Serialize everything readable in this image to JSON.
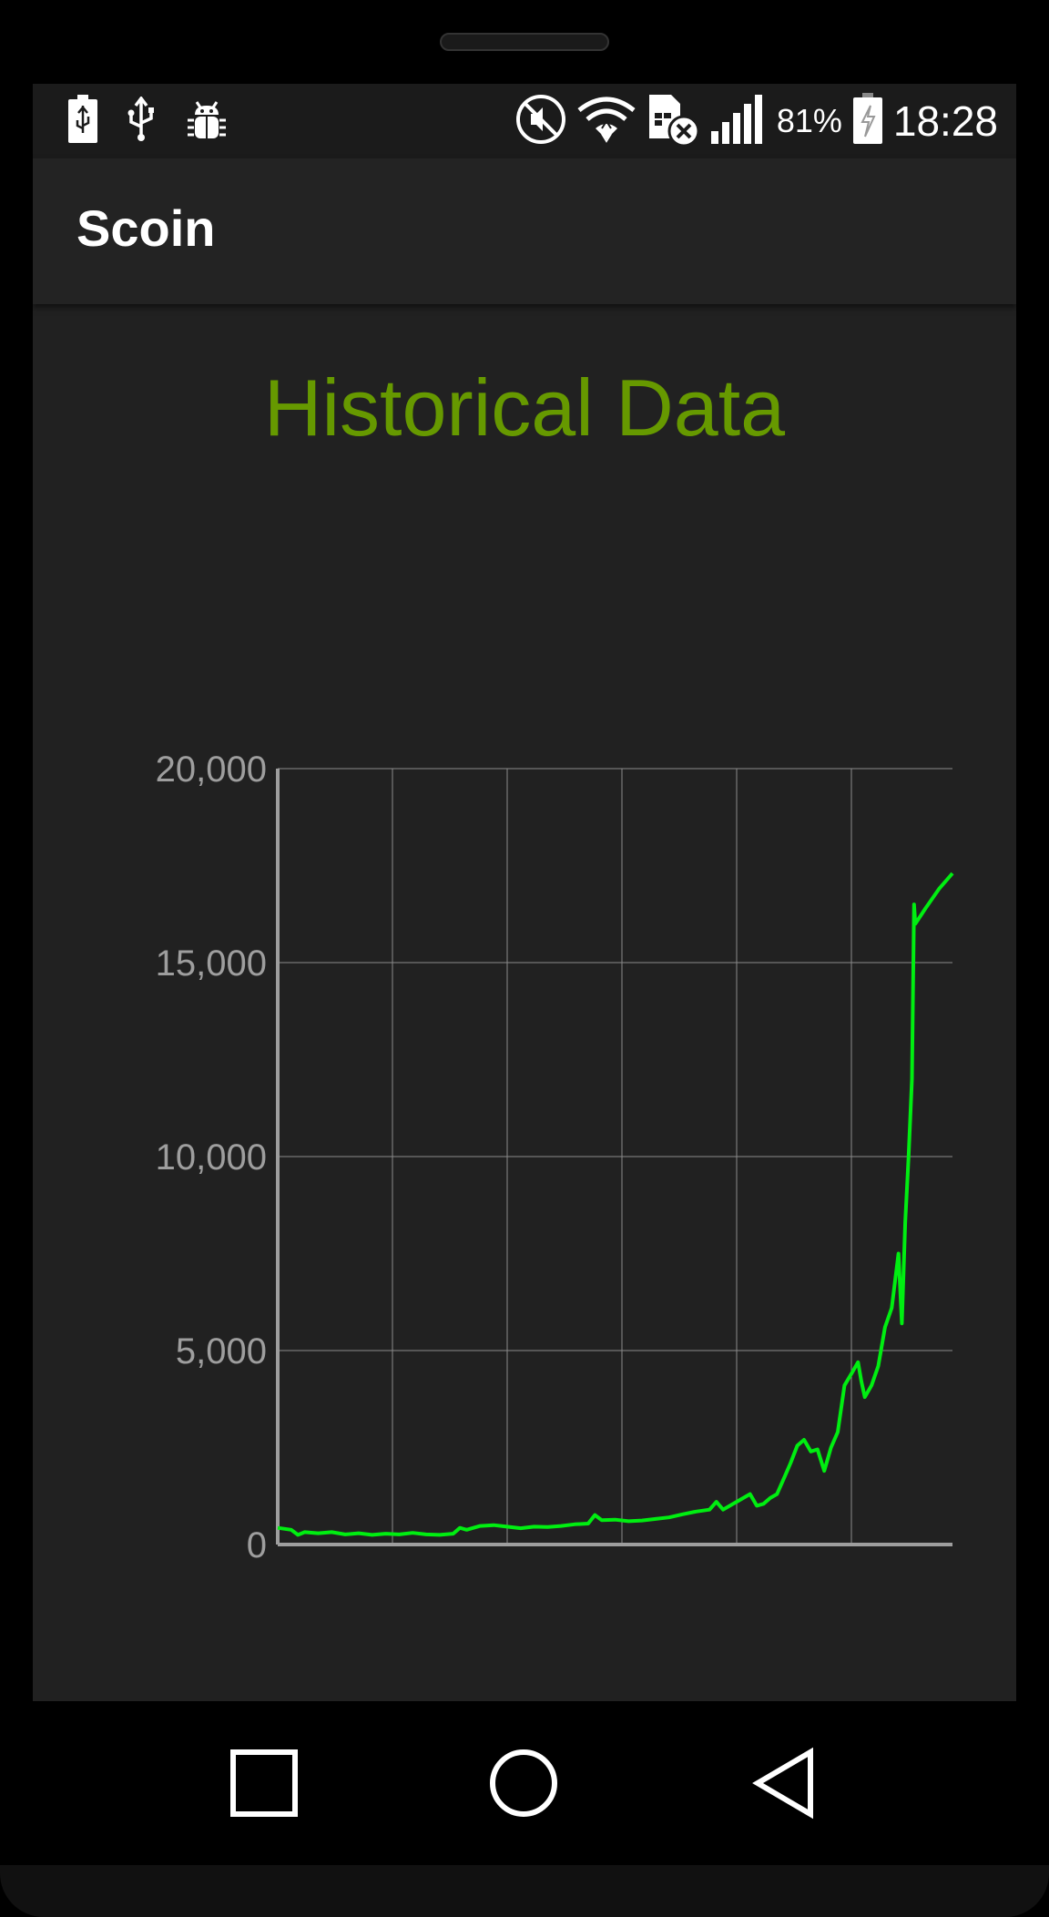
{
  "status_bar": {
    "battery_percent": "81%",
    "time": "18:28",
    "left_icons": [
      "battery-charging-icon",
      "usb-icon",
      "android-debug-icon"
    ],
    "right_icons": [
      "mute-icon",
      "wifi-icon",
      "sim-missing-icon",
      "signal-icon",
      "battery-icon"
    ]
  },
  "app": {
    "title": "Scoin"
  },
  "page": {
    "heading": "Historical Data"
  },
  "colors": {
    "heading": "#669900",
    "line": "#00ee11",
    "grid": "#8a8a8a",
    "axis": "#9e9e9e",
    "tick": "#9e9e9e"
  },
  "chart_data": {
    "type": "line",
    "title": "",
    "xlabel": "",
    "ylabel": "",
    "ylim": [
      0,
      20000
    ],
    "yticks": [
      "20,000",
      "15,000",
      "10,000",
      "5,000",
      "0"
    ],
    "ytick_values": [
      20000,
      15000,
      10000,
      5000,
      0
    ],
    "x_gridlines": 6,
    "grid": true,
    "series": [
      {
        "values": [
          [
            0,
            430
          ],
          [
            2,
            380
          ],
          [
            3,
            250
          ],
          [
            4,
            320
          ],
          [
            6,
            290
          ],
          [
            8,
            320
          ],
          [
            10,
            260
          ],
          [
            12,
            290
          ],
          [
            14,
            250
          ],
          [
            16,
            280
          ],
          [
            18,
            260
          ],
          [
            20,
            300
          ],
          [
            22,
            260
          ],
          [
            24,
            250
          ],
          [
            26,
            280
          ],
          [
            27,
            430
          ],
          [
            28,
            380
          ],
          [
            30,
            480
          ],
          [
            32,
            500
          ],
          [
            34,
            460
          ],
          [
            36,
            420
          ],
          [
            38,
            460
          ],
          [
            40,
            450
          ],
          [
            42,
            480
          ],
          [
            44,
            520
          ],
          [
            46,
            540
          ],
          [
            47,
            760
          ],
          [
            48,
            630
          ],
          [
            50,
            640
          ],
          [
            52,
            600
          ],
          [
            54,
            620
          ],
          [
            56,
            660
          ],
          [
            58,
            700
          ],
          [
            60,
            780
          ],
          [
            62,
            850
          ],
          [
            64,
            900
          ],
          [
            65,
            1100
          ],
          [
            66,
            900
          ],
          [
            68,
            1100
          ],
          [
            69,
            1200
          ],
          [
            70,
            1300
          ],
          [
            71,
            1000
          ],
          [
            72,
            1050
          ],
          [
            73,
            1200
          ],
          [
            74,
            1300
          ],
          [
            75,
            1700
          ],
          [
            76,
            2100
          ],
          [
            77,
            2550
          ],
          [
            78,
            2700
          ],
          [
            79,
            2400
          ],
          [
            80,
            2450
          ],
          [
            81,
            1900
          ],
          [
            82,
            2500
          ],
          [
            83,
            2900
          ],
          [
            84,
            4100
          ],
          [
            85,
            4400
          ],
          [
            86,
            4700
          ],
          [
            86.5,
            4200
          ],
          [
            87,
            3800
          ],
          [
            88,
            4100
          ],
          [
            89,
            4600
          ],
          [
            90,
            5600
          ],
          [
            91,
            6100
          ],
          [
            92,
            7500
          ],
          [
            92.5,
            5700
          ],
          [
            93,
            8300
          ],
          [
            93.5,
            10000
          ],
          [
            94,
            12000
          ],
          [
            94.3,
            16500
          ],
          [
            94.5,
            16000
          ],
          [
            96,
            16400
          ],
          [
            98,
            16900
          ],
          [
            100,
            17300
          ]
        ]
      }
    ]
  },
  "nav": {
    "recent_icon": "square-recent-apps-icon",
    "home_icon": "circle-home-icon",
    "back_icon": "triangle-back-icon"
  }
}
